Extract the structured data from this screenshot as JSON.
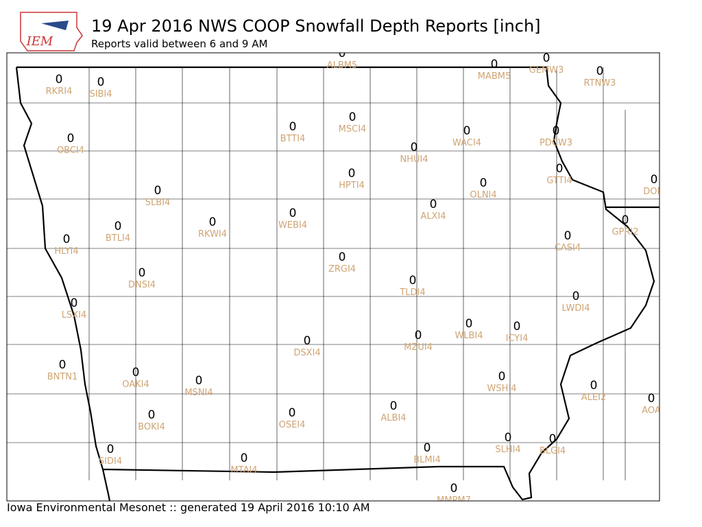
{
  "header": {
    "logo_text": "IEM",
    "title": "19 Apr 2016 NWS COOP Snowfall Depth Reports [inch]",
    "subtitle": "Reports valid between 6 and 9 AM"
  },
  "stations": [
    {
      "id": "ALBM5",
      "value": 0
    },
    {
      "id": "RKRI4",
      "value": 0
    },
    {
      "id": "SIBI4",
      "value": 0
    },
    {
      "id": "MABM5",
      "value": 0
    },
    {
      "id": "GEMW3",
      "value": 0
    },
    {
      "id": "RTNW3",
      "value": 0
    },
    {
      "id": "OBCI4",
      "value": 0
    },
    {
      "id": "BTTI4",
      "value": 0
    },
    {
      "id": "MSCI4",
      "value": 0
    },
    {
      "id": "WACI4",
      "value": 0
    },
    {
      "id": "PDCW3",
      "value": 0
    },
    {
      "id": "NHUI4",
      "value": 0
    },
    {
      "id": "HPTI4",
      "value": 0
    },
    {
      "id": "GTTI4",
      "value": 0
    },
    {
      "id": "OLNI4",
      "value": 0
    },
    {
      "id": "DOM",
      "value": 0
    },
    {
      "id": "SLBI4",
      "value": 0
    },
    {
      "id": "ALXI4",
      "value": 0
    },
    {
      "id": "WEBI4",
      "value": 0
    },
    {
      "id": "RKWI4",
      "value": 0
    },
    {
      "id": "BTLI4",
      "value": 0
    },
    {
      "id": "GPRI2",
      "value": 0
    },
    {
      "id": "HLYI4",
      "value": 0
    },
    {
      "id": "CASI4",
      "value": 0
    },
    {
      "id": "ZRGI4",
      "value": 0
    },
    {
      "id": "DNSI4",
      "value": 0
    },
    {
      "id": "TLDI4",
      "value": 0
    },
    {
      "id": "LWDI4",
      "value": 0
    },
    {
      "id": "LSXI4",
      "value": 0
    },
    {
      "id": "WLBI4",
      "value": 0
    },
    {
      "id": "ICYI4",
      "value": 0
    },
    {
      "id": "MZUI4",
      "value": 0
    },
    {
      "id": "DSXI4",
      "value": 0
    },
    {
      "id": "BNTN1",
      "value": 0
    },
    {
      "id": "OAKI4",
      "value": 0
    },
    {
      "id": "WSHI4",
      "value": 0
    },
    {
      "id": "MSNI4",
      "value": 0
    },
    {
      "id": "ALEI2",
      "value": 0
    },
    {
      "id": "AOA",
      "value": 0
    },
    {
      "id": "ALBI4",
      "value": 0
    },
    {
      "id": "OSEI4",
      "value": 0
    },
    {
      "id": "BOKI4",
      "value": 0
    },
    {
      "id": "SLHI4",
      "value": 0
    },
    {
      "id": "BLGI4",
      "value": 0
    },
    {
      "id": "BLMI4",
      "value": 0
    },
    {
      "id": "SIDI4",
      "value": 0
    },
    {
      "id": "MTAI4",
      "value": 0
    },
    {
      "id": "MMPM7",
      "value": 0
    }
  ],
  "footer": "Iowa Environmental Mesonet :: generated 19 April 2016 10:10 AM"
}
